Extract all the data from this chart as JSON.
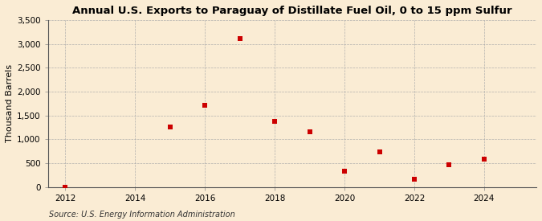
{
  "title": "Annual U.S. Exports to Paraguay of Distillate Fuel Oil, 0 to 15 ppm Sulfur",
  "ylabel": "Thousand Barrels",
  "source": "Source: U.S. Energy Information Administration",
  "background_color": "#faecd4",
  "years": [
    2012,
    2015,
    2016,
    2017,
    2018,
    2019,
    2020,
    2021,
    2022,
    2023,
    2024
  ],
  "values": [
    0,
    1260,
    1720,
    3110,
    1370,
    1160,
    330,
    740,
    160,
    460,
    575
  ],
  "xlim": [
    2011.5,
    2025.5
  ],
  "ylim": [
    0,
    3500
  ],
  "yticks": [
    0,
    500,
    1000,
    1500,
    2000,
    2500,
    3000,
    3500
  ],
  "xticks": [
    2012,
    2014,
    2016,
    2018,
    2020,
    2022,
    2024
  ],
  "marker_color": "#cc0000",
  "marker_size": 5,
  "title_fontsize": 9.5,
  "label_fontsize": 8,
  "tick_fontsize": 7.5,
  "source_fontsize": 7
}
